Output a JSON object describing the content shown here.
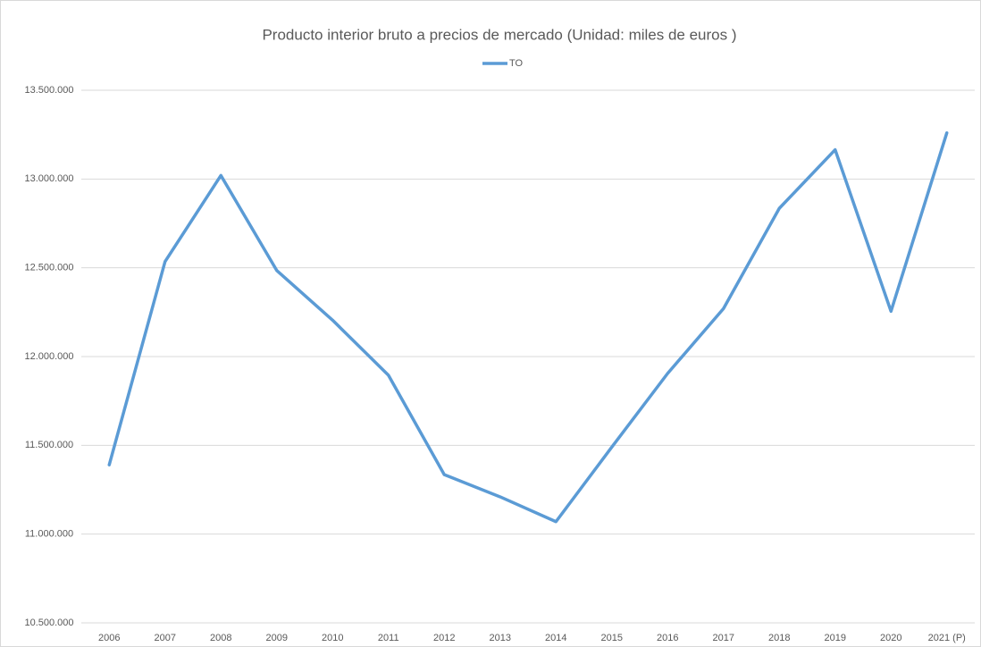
{
  "chart_data": {
    "type": "line",
    "title": "Producto interior bruto a precios de mercado (Unidad: miles de euros )",
    "categories": [
      "2006",
      "2007",
      "2008",
      "2009",
      "2010",
      "2011",
      "2012",
      "2013",
      "2014",
      "2015",
      "2016",
      "2017",
      "2018",
      "2019",
      "2020",
      "2021 (P)"
    ],
    "series": [
      {
        "name": "TO",
        "color": "#5b9bd5",
        "values": [
          11390000,
          12535000,
          13020000,
          12485000,
          12205000,
          11895000,
          11335000,
          11210000,
          11070000,
          11490000,
          11905000,
          12270000,
          12835000,
          13165000,
          12255000,
          13260000
        ]
      }
    ],
    "ylim": [
      10500000,
      13500000
    ],
    "yticks": [
      {
        "value": 10500000,
        "label": "10.500.000"
      },
      {
        "value": 11000000,
        "label": "11.000.000"
      },
      {
        "value": 11500000,
        "label": "11.500.000"
      },
      {
        "value": 12000000,
        "label": "12.000.000"
      },
      {
        "value": 12500000,
        "label": "12.500.000"
      },
      {
        "value": 13000000,
        "label": "13.000.000"
      },
      {
        "value": 13500000,
        "label": "13.500.000"
      }
    ],
    "grid": true,
    "legend": "top"
  }
}
